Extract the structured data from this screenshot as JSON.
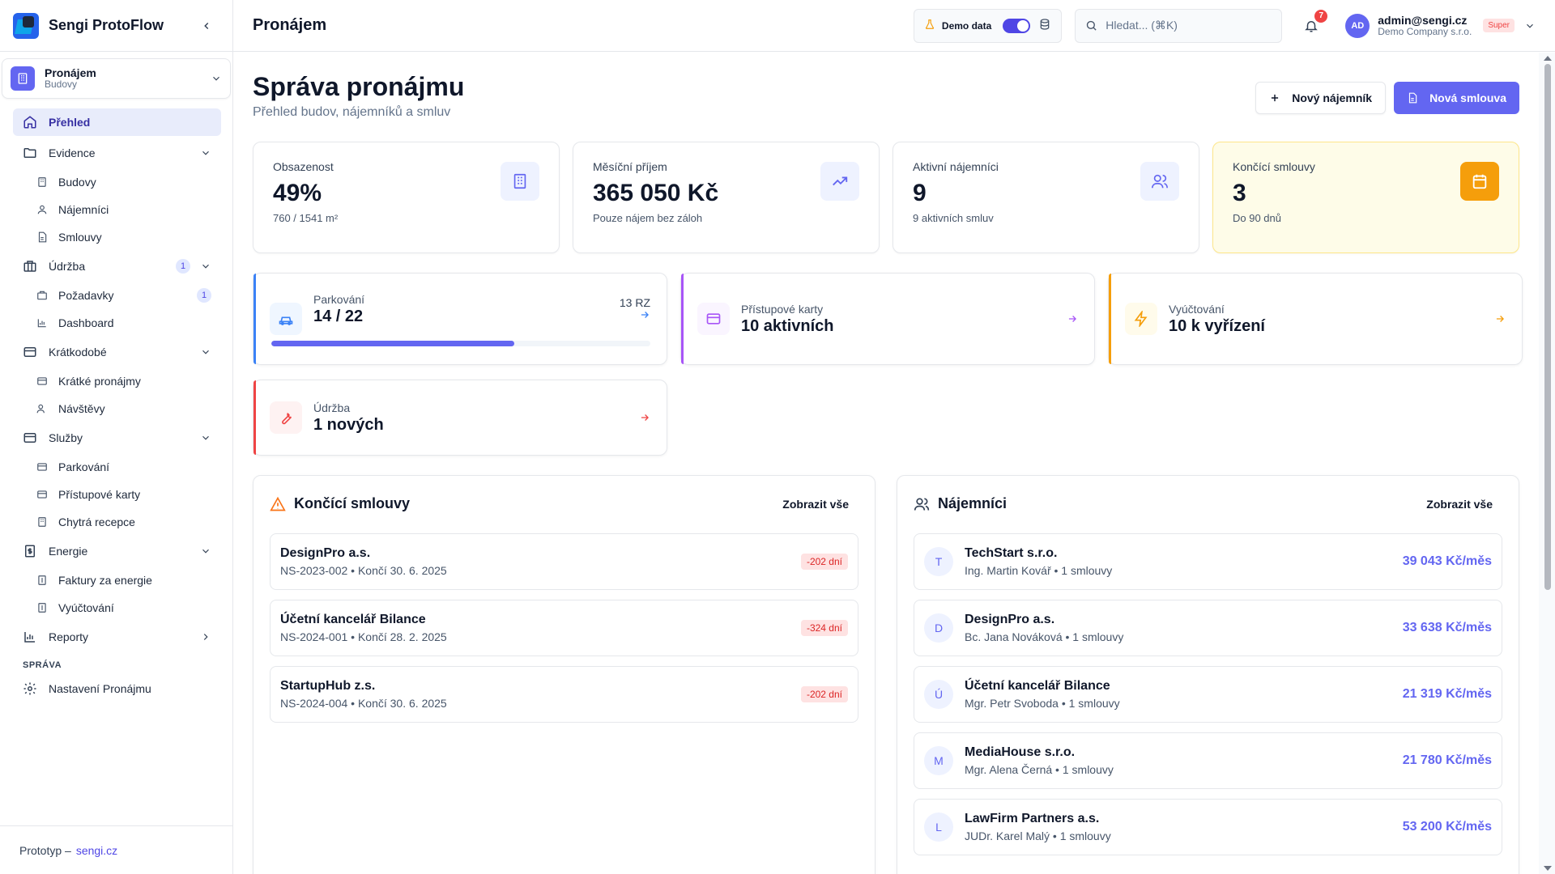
{
  "app": {
    "name": "Sengi ProtoFlow"
  },
  "module": {
    "title": "Pronájem",
    "subtitle": "Budovy"
  },
  "nav": {
    "overview": "Přehled",
    "evidence": "Evidence",
    "buildings": "Budovy",
    "tenants": "Nájemníci",
    "contracts": "Smlouvy",
    "maintenance": "Údržba",
    "maintenance_count": "1",
    "requests": "Požadavky",
    "requests_count": "1",
    "dashboard": "Dashboard",
    "shortterm": "Krátkodobé",
    "short_rentals": "Krátké pronájmy",
    "visits": "Návštěvy",
    "services": "Služby",
    "parking": "Parkování",
    "access_cards": "Přístupové karty",
    "smart_reception": "Chytrá recepce",
    "energy": "Energie",
    "energy_invoices": "Faktury za energie",
    "billing": "Vyúčtování",
    "reports": "Reporty",
    "section_admin": "SPRÁVA",
    "settings": "Nastavení Pronájmu"
  },
  "footer": {
    "label": "Prototyp –",
    "link": "sengi.cz"
  },
  "header": {
    "title": "Pronájem",
    "demo_label": "Demo data",
    "search_placeholder": "Hledat... (⌘K)",
    "notifications": "7",
    "user_initials": "AD",
    "user_email": "admin@sengi.cz",
    "user_company": "Demo Company s.r.o.",
    "role_badge": "Super"
  },
  "page": {
    "title": "Správa pronájmu",
    "subtitle": "Přehled budov, nájemníků a smluv",
    "btn_new_tenant": "Nový nájemník",
    "btn_new_contract": "Nová smlouva"
  },
  "stats": [
    {
      "label": "Obsazenost",
      "value": "49%",
      "sub": "760 / 1541 m²",
      "icon": "building-icon"
    },
    {
      "label": "Měsíční příjem",
      "value": "365 050 Kč",
      "sub": "Pouze nájem bez záloh",
      "icon": "trending-up-icon"
    },
    {
      "label": "Aktivní nájemníci",
      "value": "9",
      "sub": "9 aktivních smluv",
      "icon": "users-icon"
    },
    {
      "label": "Končící smlouvy",
      "value": "3",
      "sub": "Do 90 dnů",
      "icon": "calendar-icon"
    }
  ],
  "quick": {
    "parking": {
      "label": "Parkování",
      "value": "14 / 22",
      "right": "13 RZ",
      "progress": 0.64,
      "accent": "#3b82f6"
    },
    "cards": {
      "label": "Přístupové karty",
      "value": "10 aktivních",
      "accent": "#a855f7"
    },
    "billing": {
      "label": "Vyúčtování",
      "value": "10 k vyřízení",
      "accent": "#f59e0b"
    },
    "maintenance": {
      "label": "Údržba",
      "value": "1 nových",
      "accent": "#ef4444"
    }
  },
  "ending": {
    "title": "Končící smlouvy",
    "link": "Zobrazit vše",
    "items": [
      {
        "name": "DesignPro a.s.",
        "meta": "NS-2023-002 • Končí 30. 6. 2025",
        "days": "-202 dní"
      },
      {
        "name": "Účetní kancelář Bilance",
        "meta": "NS-2024-001 • Končí 28. 2. 2025",
        "days": "-324 dní"
      },
      {
        "name": "StartupHub z.s.",
        "meta": "NS-2024-004 • Končí 30. 6. 2025",
        "days": "-202 dní"
      }
    ]
  },
  "tenants": {
    "title": "Nájemníci",
    "link": "Zobrazit vše",
    "items": [
      {
        "initial": "T",
        "name": "TechStart s.r.o.",
        "meta": "Ing. Martin Kovář • 1 smlouvy",
        "amount": "39 043 Kč/měs"
      },
      {
        "initial": "D",
        "name": "DesignPro a.s.",
        "meta": "Bc. Jana Nováková • 1 smlouvy",
        "amount": "33 638 Kč/měs"
      },
      {
        "initial": "Ú",
        "name": "Účetní kancelář Bilance",
        "meta": "Mgr. Petr Svoboda • 1 smlouvy",
        "amount": "21 319 Kč/měs"
      },
      {
        "initial": "M",
        "name": "MediaHouse s.r.o.",
        "meta": "Mgr. Alena Černá • 1 smlouvy",
        "amount": "21 780 Kč/měs"
      },
      {
        "initial": "L",
        "name": "LawFirm Partners a.s.",
        "meta": "JUDr. Karel Malý • 1 smlouvy",
        "amount": "53 200 Kč/měs"
      }
    ]
  }
}
